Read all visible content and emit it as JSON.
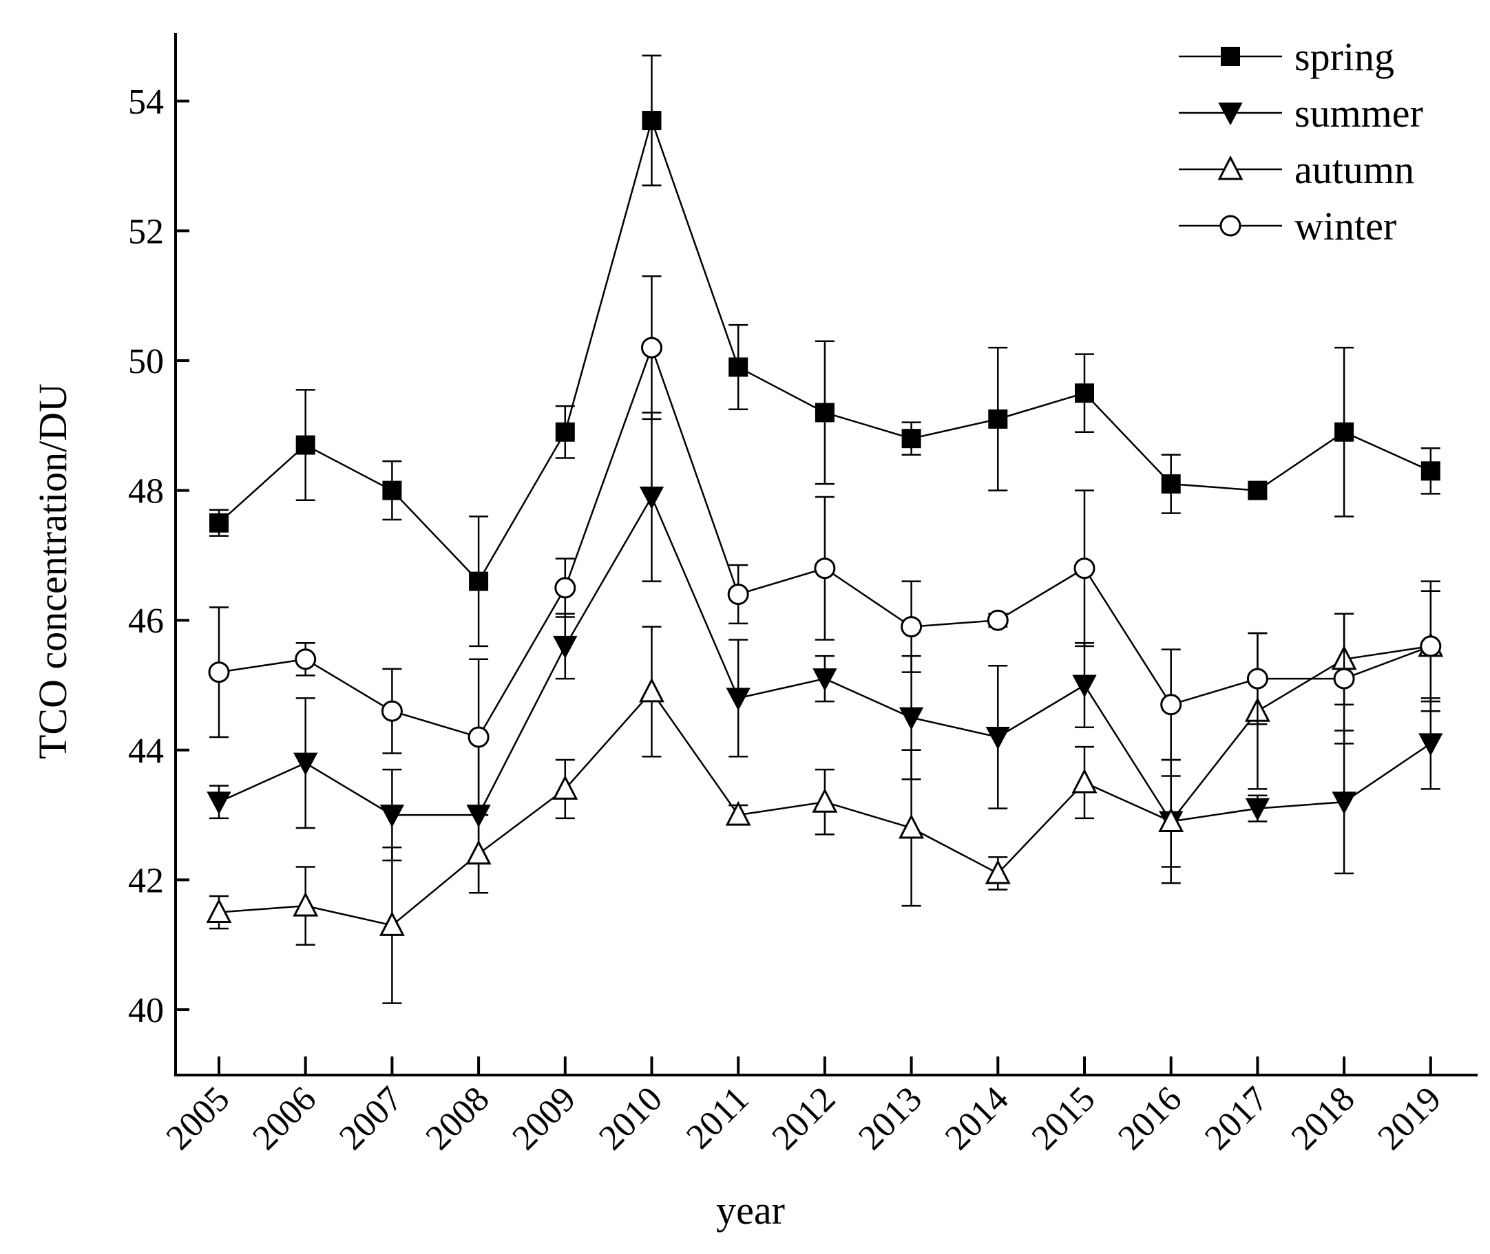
{
  "chart_data": {
    "type": "line",
    "xlabel": "year",
    "ylabel": "TCO concentration/DU",
    "ylim": [
      39,
      55
    ],
    "yticks": [
      40,
      42,
      44,
      46,
      48,
      50,
      52,
      54
    ],
    "categories": [
      "2005",
      "2006",
      "2007",
      "2008",
      "2009",
      "2010",
      "2011",
      "2012",
      "2013",
      "2014",
      "2015",
      "2016",
      "2017",
      "2018",
      "2019"
    ],
    "legend_position": "top-right",
    "series": [
      {
        "name": "spring",
        "marker": "square-filled",
        "values": [
          47.5,
          48.7,
          48.0,
          46.6,
          48.9,
          53.7,
          49.9,
          49.2,
          48.8,
          49.1,
          49.5,
          48.1,
          48.0,
          48.9,
          48.3
        ],
        "errors": [
          0.2,
          0.85,
          0.45,
          1.0,
          0.4,
          1.0,
          0.65,
          1.1,
          0.25,
          1.1,
          0.6,
          0.45,
          0.1,
          1.3,
          0.35
        ]
      },
      {
        "name": "summer",
        "marker": "triangle-down-filled",
        "values": [
          43.2,
          43.8,
          43.0,
          43.0,
          45.6,
          47.9,
          44.8,
          45.1,
          44.5,
          44.2,
          45.0,
          42.9,
          43.1,
          43.2,
          44.1
        ],
        "errors": [
          0.25,
          1.0,
          0.7,
          1.2,
          0.5,
          1.3,
          0.9,
          0.35,
          0.95,
          1.1,
          0.65,
          0.95,
          0.2,
          1.1,
          0.7
        ]
      },
      {
        "name": "autumn",
        "marker": "triangle-up-open",
        "values": [
          41.5,
          41.6,
          41.3,
          42.4,
          43.4,
          44.9,
          43.0,
          43.2,
          42.8,
          42.1,
          43.5,
          42.9,
          44.6,
          45.4,
          45.6
        ],
        "errors": [
          0.25,
          0.6,
          1.2,
          0.6,
          0.45,
          1.0,
          0.15,
          0.5,
          1.2,
          0.25,
          0.55,
          0.7,
          1.2,
          0.7,
          1.0
        ]
      },
      {
        "name": "winter",
        "marker": "circle-open",
        "values": [
          45.2,
          45.4,
          44.6,
          44.2,
          46.5,
          50.2,
          46.4,
          46.8,
          45.9,
          46.0,
          46.8,
          44.7,
          45.1,
          45.1,
          45.6
        ],
        "errors": [
          1.0,
          0.25,
          0.65,
          1.2,
          0.45,
          1.1,
          0.45,
          1.1,
          0.7,
          0.1,
          1.2,
          0.85,
          0.7,
          1.0,
          0.85
        ]
      }
    ]
  }
}
